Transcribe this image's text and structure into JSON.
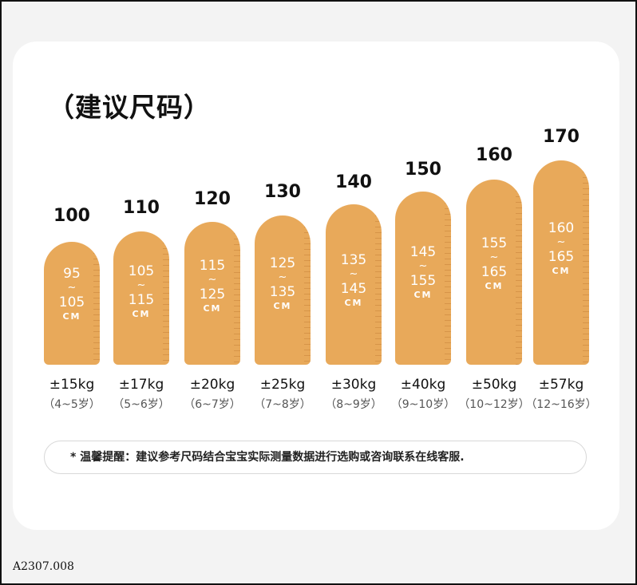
{
  "title": "（建议尺码）",
  "sizes": [
    {
      "label": "100",
      "range_from": "95",
      "tilde": "~",
      "range_to": "105",
      "unit": "CM",
      "weight": "±15kg",
      "age": "（4~5岁）"
    },
    {
      "label": "110",
      "range_from": "105",
      "tilde": "~",
      "range_to": "115",
      "unit": "CM",
      "weight": "±17kg",
      "age": "（5~6岁）"
    },
    {
      "label": "120",
      "range_from": "115",
      "tilde": "~",
      "range_to": "125",
      "unit": "CM",
      "weight": "±20kg",
      "age": "（6~7岁）"
    },
    {
      "label": "130",
      "range_from": "125",
      "tilde": "~",
      "range_to": "135",
      "unit": "CM",
      "weight": "±25kg",
      "age": "（7~8岁）"
    },
    {
      "label": "140",
      "range_from": "135",
      "tilde": "~",
      "range_to": "145",
      "unit": "CM",
      "weight": "±30kg",
      "age": "（8~9岁）"
    },
    {
      "label": "150",
      "range_from": "145",
      "tilde": "~",
      "range_to": "155",
      "unit": "CM",
      "weight": "±40kg",
      "age": "（9~10岁）"
    },
    {
      "label": "160",
      "range_from": "155",
      "tilde": "~",
      "range_to": "165",
      "unit": "CM",
      "weight": "±50kg",
      "age": "（10~12岁）"
    },
    {
      "label": "170",
      "range_from": "160",
      "tilde": "~",
      "range_to": "165",
      "unit": "CM",
      "weight": "±57kg",
      "age": "（12~16岁）"
    }
  ],
  "note": "* 温馨提醒：建议参考尺码结合宝宝实际测量数据进行选购或咨询联系在线客服.",
  "code": "A2307.008",
  "colors": {
    "pill": "#e8a95a",
    "pill_text": "#ffffff"
  }
}
